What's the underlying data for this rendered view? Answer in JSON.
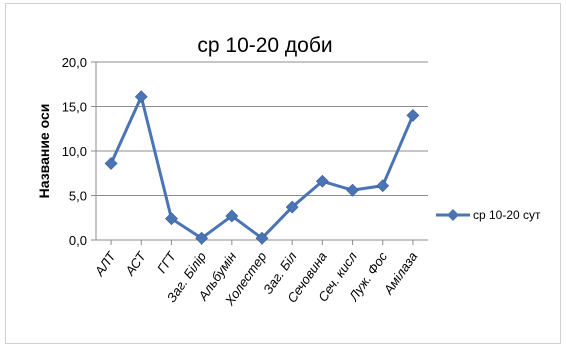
{
  "chart_data": {
    "type": "line",
    "title": "ср 10-20 доби",
    "ylabel": "Название оси",
    "xlabel": "",
    "categories": [
      "АЛТ",
      "АСТ",
      "ГГТ",
      "Заг. Білір",
      "Альбумін",
      "Холестер",
      "Заг. Біл",
      "Сечовина",
      "Сеч. кисл",
      "Луж. Фос",
      "Амілаза"
    ],
    "series": [
      {
        "name": "ср 10-20 сут",
        "values": [
          8.6,
          16.1,
          2.4,
          0.2,
          2.7,
          0.2,
          3.7,
          6.6,
          5.6,
          6.1,
          14.0
        ],
        "color": "#4a74b4"
      }
    ],
    "ylim": [
      0,
      20
    ],
    "yticks": [
      "0,0",
      "5,0",
      "10,0",
      "15,0",
      "20,0"
    ],
    "grid": true,
    "legend_position": "right",
    "marker": "diamond"
  }
}
